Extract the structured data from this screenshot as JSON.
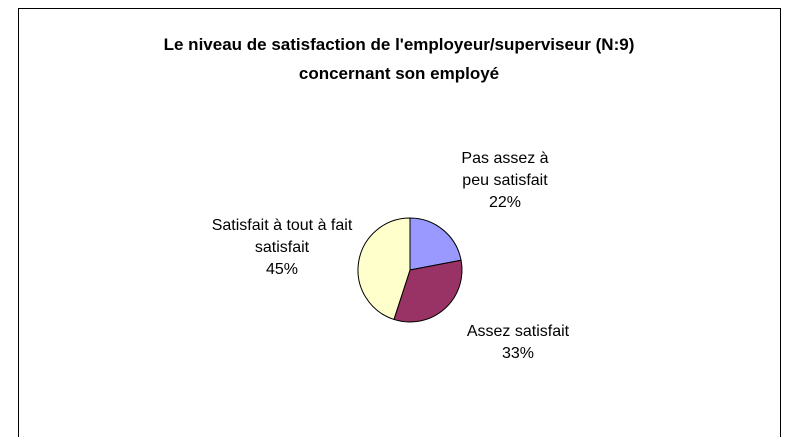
{
  "chart_data": {
    "type": "pie",
    "title": "Le niveau de satisfaction de l'employeur/superviseur (N:9) concernant son employé",
    "categories": [
      "Pas assez à peu satisfait",
      "Assez satisfait",
      "Satisfait à tout à fait satisfait"
    ],
    "values": [
      22,
      33,
      45
    ],
    "value_labels": [
      "22%",
      "33%",
      "45%"
    ],
    "colors": [
      "#9999ff",
      "#993366",
      "#ffffcc"
    ]
  }
}
